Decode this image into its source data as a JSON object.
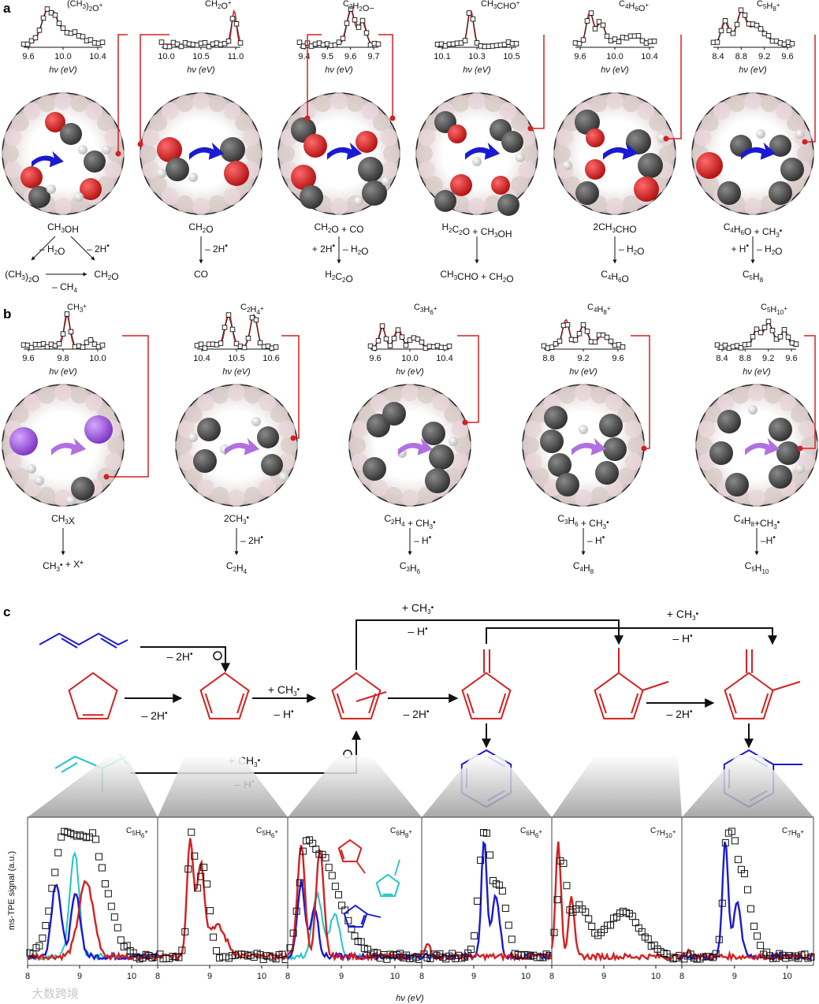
{
  "panels": {
    "a": "a",
    "b": "b",
    "c": "c"
  },
  "colors": {
    "red": "#d42020",
    "blue": "#1a1ad2",
    "cyan": "#22c4c4",
    "purple": "#b070e0",
    "black": "#111111",
    "carbon": "#505050",
    "oxygen": "#d81e1e",
    "hydrogen": "#dcdcdc",
    "iodine": "#9a4fd6"
  },
  "axis_label": "hν (eV)",
  "row_a": {
    "spectra": [
      {
        "label": "(CH3)2O+",
        "ticks": [
          "9.6",
          "10.0",
          "10.4"
        ]
      },
      {
        "label": "CH2O+",
        "ticks": [
          "10.0",
          "10.5",
          "11.0"
        ]
      },
      {
        "label": "C2H2O−",
        "ticks": [
          "9.4",
          "9.5",
          "9.6",
          "9.7"
        ]
      },
      {
        "label": "CH3CHO+",
        "ticks": [
          "10.1",
          "10.3",
          "10.5"
        ]
      },
      {
        "label": "C4H6O+",
        "ticks": [
          "9.6",
          "10.0",
          "10.4"
        ]
      },
      {
        "label": "C5H8+",
        "ticks": [
          "8.4",
          "8.8",
          "9.2",
          "9.6"
        ]
      }
    ],
    "reactions": [
      {
        "l1": "CH3OH",
        "l2a": "– H2O",
        "l2b": "– 2H·",
        "l3a": "(CH3)2O",
        "l3b": "CH2O",
        "l4": "– CH4"
      },
      {
        "l1": "CH2O",
        "l2": "– 2H·",
        "l3": "CO"
      },
      {
        "l1": "CH2O + CO",
        "l2a": "+ 2H·",
        "l2b": "– H2O",
        "l3": "H2C2O"
      },
      {
        "l1": "H2C2O + CH3OH",
        "l3": "CH3CHO + CH2O"
      },
      {
        "l1": "2CH3CHO",
        "l2": "– H2O",
        "l3": "C4H6O"
      },
      {
        "l1": "C4H6O + CH3·",
        "l2a": "+ H·",
        "l2b": "– H2O",
        "l3": "C5H8"
      }
    ]
  },
  "row_b": {
    "spectra": [
      {
        "label": "CH3+",
        "ticks": [
          "9.6",
          "9.8",
          "10.0"
        ]
      },
      {
        "label": "C2H4+",
        "ticks": [
          "10.4",
          "10.5",
          "10.6"
        ]
      },
      {
        "label": "C3H6+",
        "ticks": [
          "9.6",
          "10.0",
          "10.4"
        ]
      },
      {
        "label": "C4H8+",
        "ticks": [
          "8.8",
          "9.2",
          "9.6"
        ]
      },
      {
        "label": "C5H10+",
        "ticks": [
          "8.4",
          "8.8",
          "9.2",
          "9.6"
        ]
      }
    ],
    "reactions": [
      {
        "l1": "CH3X",
        "l3": "CH3· + X*"
      },
      {
        "l1": "2CH3·",
        "l2": "– 2H·",
        "l3": "C2H4"
      },
      {
        "l1": "C2H4 + CH3·",
        "l2": "– H·",
        "l3": "C3H6"
      },
      {
        "l1": "C3H6 + CH3·",
        "l2": "– H·",
        "l3": "C4H8"
      },
      {
        "l1": "C4H8+CH3·",
        "l2": "–H·",
        "l3": "C5H10"
      }
    ]
  },
  "row_c": {
    "arrows": {
      "m2h_a": "– 2H•",
      "m2h_b": "– 2H•",
      "m2h_c": "– 2H•",
      "m2h_d": "– 2H•",
      "plus_ch3_a": "+ CH3•",
      "minus_h_a": "– H•",
      "plus_ch3_b": "+ CH3•",
      "minus_h_b": "– H•",
      "plus_ch3_c": "+ CH3•",
      "minus_h_c": "– H•",
      "plus_ch3_top": "+ CH3•",
      "minus_h_top": "– H•"
    },
    "spectra": [
      {
        "label": "C5H6+"
      },
      {
        "label": "C5H6+"
      },
      {
        "label": "C6H8+"
      },
      {
        "label": "C6H6+"
      },
      {
        "label": "C7H10+"
      },
      {
        "label": "C7H8+"
      }
    ],
    "y_label": "ms-TPE signal (a.u.)",
    "x_label": "hν (eV)",
    "x_ticks": [
      "8",
      "9",
      "10"
    ]
  },
  "watermark": "大数跨境"
}
